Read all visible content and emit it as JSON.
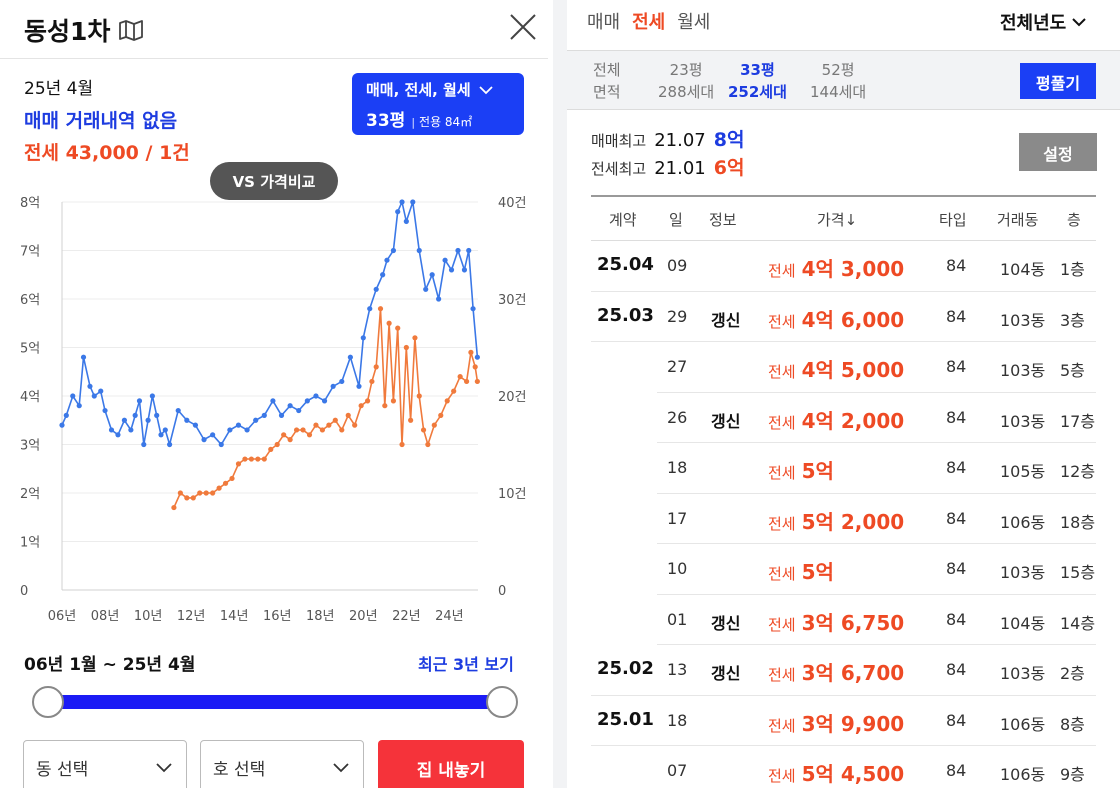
{
  "left": {
    "title": "동성1차",
    "summary": {
      "date": "25년 4월",
      "sale_text": "매매 거래내역 없음",
      "rent_text": "전세 43,000 / 1건"
    },
    "type_button": {
      "line1": "매매, 전세, 월세",
      "pyeong": "33평",
      "area": "전용 84㎡"
    },
    "vs_button": "VS 가격비교",
    "range_text": "06년 1월 ~ 25년 4월",
    "recent_link": "최근 3년 보기",
    "dong_select": "동 선택",
    "ho_select": "호 선택",
    "list_button": "집 내놓기"
  },
  "chart_data": {
    "type": "line",
    "y_left_ticks": [
      "8억",
      "7억",
      "6억",
      "5억",
      "4억",
      "3억",
      "2억",
      "1억",
      "0"
    ],
    "y_right_ticks": [
      "40건",
      "30건",
      "20건",
      "10건",
      "0"
    ],
    "x_ticks": [
      "06년",
      "08년",
      "10년",
      "12년",
      "14년",
      "16년",
      "18년",
      "20년",
      "22년",
      "24년"
    ],
    "ylim_left": [
      0,
      8
    ],
    "ylim_right": [
      0,
      40
    ],
    "xlim": [
      2006,
      2025.33
    ],
    "grid": true,
    "series": [
      {
        "color": "#3b78e7",
        "x": [
          2006.0,
          2006.2,
          2006.5,
          2006.8,
          2007.0,
          2007.3,
          2007.5,
          2007.8,
          2008.0,
          2008.3,
          2008.6,
          2008.9,
          2009.2,
          2009.4,
          2009.6,
          2009.8,
          2010.0,
          2010.2,
          2010.4,
          2010.6,
          2010.8,
          2011.0,
          2011.4,
          2011.8,
          2012.2,
          2012.6,
          2013.0,
          2013.4,
          2013.8,
          2014.2,
          2014.6,
          2015.0,
          2015.4,
          2015.8,
          2016.2,
          2016.6,
          2017.0,
          2017.4,
          2017.8,
          2018.2,
          2018.6,
          2019.0,
          2019.4,
          2019.8,
          2020.0,
          2020.3,
          2020.6,
          2020.9,
          2021.1,
          2021.4,
          2021.6,
          2021.8,
          2022.0,
          2022.3,
          2022.6,
          2022.9,
          2023.2,
          2023.5,
          2023.8,
          2024.1,
          2024.4,
          2024.7,
          2024.9,
          2025.1,
          2025.3
        ],
        "y": [
          3.4,
          3.6,
          4.0,
          3.8,
          4.8,
          4.2,
          4.0,
          4.1,
          3.7,
          3.3,
          3.2,
          3.5,
          3.3,
          3.6,
          3.9,
          3.0,
          3.5,
          4.0,
          3.6,
          3.2,
          3.3,
          3.0,
          3.7,
          3.5,
          3.4,
          3.1,
          3.2,
          3.0,
          3.3,
          3.4,
          3.3,
          3.5,
          3.6,
          3.9,
          3.6,
          3.8,
          3.7,
          3.9,
          4.0,
          3.9,
          4.2,
          4.3,
          4.8,
          4.2,
          5.2,
          5.8,
          6.2,
          6.5,
          6.8,
          7.0,
          7.8,
          8.0,
          7.6,
          8.0,
          7.0,
          6.2,
          6.5,
          6.0,
          6.8,
          6.6,
          7.0,
          6.6,
          7.0,
          5.8,
          4.8
        ]
      },
      {
        "color": "#f07a3c",
        "x": [
          2011.2,
          2011.5,
          2011.8,
          2012.1,
          2012.4,
          2012.7,
          2013.0,
          2013.3,
          2013.6,
          2013.9,
          2014.2,
          2014.5,
          2014.8,
          2015.1,
          2015.4,
          2015.7,
          2016.0,
          2016.3,
          2016.6,
          2016.9,
          2017.2,
          2017.5,
          2017.8,
          2018.1,
          2018.4,
          2018.7,
          2019.0,
          2019.3,
          2019.6,
          2019.9,
          2020.2,
          2020.4,
          2020.6,
          2020.8,
          2021.0,
          2021.2,
          2021.4,
          2021.6,
          2021.8,
          2022.0,
          2022.2,
          2022.4,
          2022.6,
          2022.8,
          2023.0,
          2023.3,
          2023.6,
          2023.9,
          2024.2,
          2024.5,
          2024.8,
          2025.0,
          2025.2,
          2025.3
        ],
        "y": [
          1.7,
          2.0,
          1.9,
          1.9,
          2.0,
          2.0,
          2.0,
          2.1,
          2.2,
          2.3,
          2.6,
          2.7,
          2.7,
          2.7,
          2.7,
          2.9,
          3.0,
          3.2,
          3.1,
          3.3,
          3.3,
          3.2,
          3.4,
          3.3,
          3.4,
          3.5,
          3.3,
          3.6,
          3.4,
          3.8,
          3.9,
          4.3,
          4.6,
          5.8,
          3.8,
          5.5,
          3.9,
          5.4,
          3.0,
          5.0,
          3.5,
          5.2,
          4.0,
          3.3,
          3.0,
          3.4,
          3.6,
          3.9,
          4.1,
          4.4,
          4.3,
          4.9,
          4.6,
          4.3
        ]
      }
    ]
  },
  "right": {
    "tabs": [
      "매매",
      "전세",
      "월세"
    ],
    "active_tab": "전세",
    "year_select": "전체년도",
    "area_strip": {
      "label_top": "전체",
      "label_bottom": "면적",
      "options": [
        {
          "top": "23평",
          "bottom": "288세대",
          "active": false
        },
        {
          "top": "33평",
          "bottom": "252세대",
          "active": true
        },
        {
          "top": "52평",
          "bottom": "144세대",
          "active": false
        }
      ],
      "button": "평풀기"
    },
    "max_sale": {
      "label": "매매최고",
      "date": "21.07",
      "value": "8억",
      "color": "#1d3ce0"
    },
    "max_rent": {
      "label": "전세최고",
      "date": "21.01",
      "value": "6억",
      "color": "#ee4a24"
    },
    "settings_button": "설정",
    "table_headers": [
      "계약",
      "일",
      "정보",
      "가격↓",
      "타입",
      "거래동",
      "층"
    ],
    "rows": [
      {
        "contract": "25.04",
        "day": "09",
        "info": "",
        "label": "전세",
        "price": "4억 3,000",
        "type": "84",
        "dong": "104동",
        "floor": "1층"
      },
      {
        "contract": "25.03",
        "day": "29",
        "info": "갱신",
        "label": "전세",
        "price": "4억 6,000",
        "type": "84",
        "dong": "103동",
        "floor": "3층"
      },
      {
        "contract": "",
        "day": "27",
        "info": "",
        "label": "전세",
        "price": "4억 5,000",
        "type": "84",
        "dong": "103동",
        "floor": "5층"
      },
      {
        "contract": "",
        "day": "26",
        "info": "갱신",
        "label": "전세",
        "price": "4억 2,000",
        "type": "84",
        "dong": "103동",
        "floor": "17층"
      },
      {
        "contract": "",
        "day": "18",
        "info": "",
        "label": "전세",
        "price": "5억",
        "type": "84",
        "dong": "105동",
        "floor": "12층"
      },
      {
        "contract": "",
        "day": "17",
        "info": "",
        "label": "전세",
        "price": "5억 2,000",
        "type": "84",
        "dong": "106동",
        "floor": "18층"
      },
      {
        "contract": "",
        "day": "10",
        "info": "",
        "label": "전세",
        "price": "5억",
        "type": "84",
        "dong": "103동",
        "floor": "15층"
      },
      {
        "contract": "",
        "day": "01",
        "info": "갱신",
        "label": "전세",
        "price": "3억 6,750",
        "type": "84",
        "dong": "104동",
        "floor": "14층"
      },
      {
        "contract": "25.02",
        "day": "13",
        "info": "갱신",
        "label": "전세",
        "price": "3억 6,700",
        "type": "84",
        "dong": "103동",
        "floor": "2층"
      },
      {
        "contract": "25.01",
        "day": "18",
        "info": "",
        "label": "전세",
        "price": "3억 9,900",
        "type": "84",
        "dong": "106동",
        "floor": "8층"
      },
      {
        "contract": "",
        "day": "07",
        "info": "",
        "label": "전세",
        "price": "5억 4,500",
        "type": "84",
        "dong": "106동",
        "floor": "9층"
      }
    ]
  }
}
